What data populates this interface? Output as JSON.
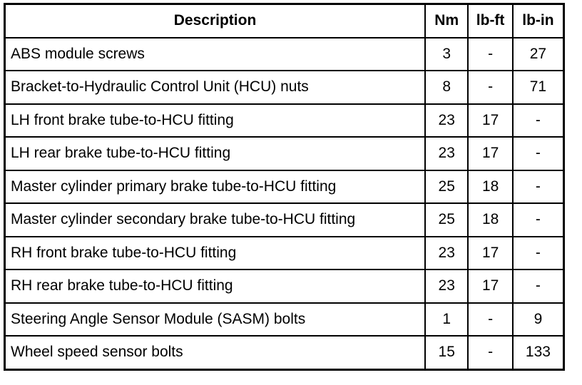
{
  "table": {
    "headers": [
      "Description",
      "Nm",
      "lb-ft",
      "lb-in"
    ],
    "rows": [
      [
        "ABS module screws",
        "3",
        "-",
        "27"
      ],
      [
        "Bracket-to-Hydraulic Control Unit (HCU) nuts",
        "8",
        "-",
        "71"
      ],
      [
        "LH front brake tube-to-HCU fitting",
        "23",
        "17",
        "-"
      ],
      [
        "LH rear brake tube-to-HCU fitting",
        "23",
        "17",
        "-"
      ],
      [
        "Master cylinder primary brake tube-to-HCU fitting",
        "25",
        "18",
        "-"
      ],
      [
        "Master cylinder secondary brake tube-to-HCU fitting",
        "25",
        "18",
        "-"
      ],
      [
        "RH front brake tube-to-HCU fitting",
        "23",
        "17",
        "-"
      ],
      [
        "RH rear brake tube-to-HCU fitting",
        "23",
        "17",
        "-"
      ],
      [
        "Steering Angle Sensor Module (SASM) bolts",
        "1",
        "-",
        "9"
      ],
      [
        "Wheel speed sensor bolts",
        "15",
        "-",
        "133"
      ]
    ]
  }
}
